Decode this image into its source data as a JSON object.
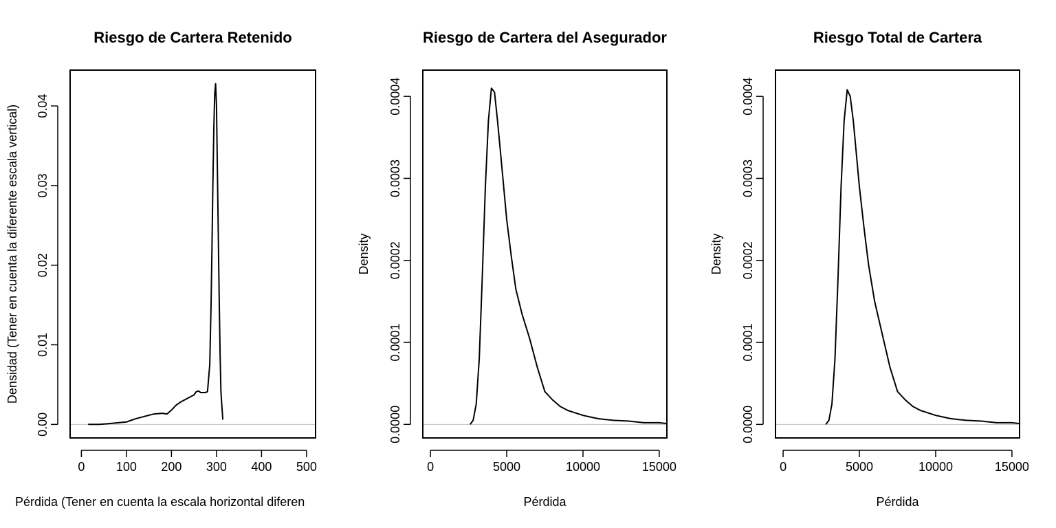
{
  "chart_data": [
    {
      "type": "line",
      "title": "Riesgo de Cartera Retenido",
      "xlabel": "Pérdida (Tener en cuenta la escala horizontal diferen",
      "ylabel": "Densidad (Tener en cuenta la diferente escala vertical)",
      "xlim": [
        -25,
        520
      ],
      "ylim": [
        -0.0017,
        0.0445
      ],
      "xticks": [
        0,
        100,
        200,
        300,
        400,
        500
      ],
      "xtick_labels": [
        "0",
        "100",
        "200",
        "300",
        "400",
        "500"
      ],
      "yticks": [
        0.0,
        0.01,
        0.02,
        0.03,
        0.04
      ],
      "ytick_labels": [
        "0.00",
        "0.01",
        "0.02",
        "0.03",
        "0.04"
      ],
      "grid": false,
      "baseline": 0,
      "series": [
        {
          "x": [
            15,
            40,
            60,
            80,
            100,
            110,
            120,
            140,
            160,
            180,
            190,
            200,
            210,
            220,
            230,
            240,
            250,
            255,
            260,
            265,
            270,
            275,
            280,
            285,
            288,
            290,
            292,
            294,
            296,
            298,
            300,
            302,
            304,
            306,
            308,
            310,
            314
          ],
          "y": [
            0.0,
            0.0,
            0.0001,
            0.0002,
            0.0003,
            0.0005,
            0.0007,
            0.001,
            0.0013,
            0.0014,
            0.0013,
            0.0018,
            0.0024,
            0.0028,
            0.0031,
            0.0034,
            0.0037,
            0.0041,
            0.0042,
            0.004,
            0.004,
            0.004,
            0.0041,
            0.0075,
            0.015,
            0.022,
            0.03,
            0.037,
            0.0415,
            0.0428,
            0.04,
            0.032,
            0.024,
            0.016,
            0.009,
            0.004,
            0.0006
          ]
        }
      ]
    },
    {
      "type": "line",
      "title": "Riesgo de Cartera del Asegurador",
      "xlabel": "Pérdida",
      "ylabel": "Density",
      "xlim": [
        -500,
        15500
      ],
      "ylim": [
        -1.65e-05,
        0.000432
      ],
      "xticks": [
        0,
        5000,
        10000,
        15000
      ],
      "xtick_labels": [
        "0",
        "5000",
        "10000",
        "15000"
      ],
      "yticks": [
        0.0,
        0.0001,
        0.0002,
        0.0003,
        0.0004
      ],
      "ytick_labels": [
        "0.0000",
        "0.0001",
        "0.0002",
        "0.0003",
        "0.0004"
      ],
      "grid": false,
      "baseline": 0,
      "series": [
        {
          "x": [
            2600,
            2800,
            3000,
            3200,
            3400,
            3600,
            3800,
            4000,
            4200,
            4400,
            4600,
            4800,
            5000,
            5300,
            5600,
            6000,
            6500,
            7000,
            7500,
            8000,
            8500,
            9000,
            9500,
            10000,
            10500,
            11000,
            11500,
            12000,
            13000,
            14000,
            15000,
            15500
          ],
          "y": [
            0.0,
            5e-06,
            2.5e-05,
            8e-05,
            0.00018,
            0.00029,
            0.00037,
            0.00041,
            0.000405,
            0.00037,
            0.00033,
            0.00029,
            0.00025,
            0.000205,
            0.000165,
            0.000135,
            0.000105,
            7e-05,
            4e-05,
            3e-05,
            2.2e-05,
            1.7e-05,
            1.4e-05,
            1.1e-05,
            9e-06,
            7e-06,
            6e-06,
            5e-06,
            4e-06,
            2e-06,
            2e-06,
            1e-06
          ]
        }
      ]
    },
    {
      "type": "line",
      "title": "Riesgo Total de Cartera",
      "xlabel": "Pérdida",
      "ylabel": "Density",
      "xlim": [
        -500,
        15500
      ],
      "ylim": [
        -1.65e-05,
        0.000432
      ],
      "xticks": [
        0,
        5000,
        10000,
        15000
      ],
      "xtick_labels": [
        "0",
        "5000",
        "10000",
        "15000"
      ],
      "yticks": [
        0.0,
        0.0001,
        0.0002,
        0.0003,
        0.0004
      ],
      "ytick_labels": [
        "0.0000",
        "0.0001",
        "0.0002",
        "0.0003",
        "0.0004"
      ],
      "grid": false,
      "baseline": 0,
      "series": [
        {
          "x": [
            2800,
            3000,
            3200,
            3400,
            3600,
            3800,
            4000,
            4200,
            4400,
            4600,
            4800,
            5000,
            5300,
            5600,
            6000,
            6500,
            7000,
            7500,
            8000,
            8500,
            9000,
            9500,
            10000,
            10500,
            11000,
            11500,
            12000,
            13000,
            14000,
            15000,
            15500
          ],
          "y": [
            0.0,
            5e-06,
            2.5e-05,
            8e-05,
            0.00018,
            0.00029,
            0.00037,
            0.000408,
            0.0004,
            0.00037,
            0.00033,
            0.00029,
            0.00024,
            0.000195,
            0.00015,
            0.00011,
            7e-05,
            4e-05,
            3e-05,
            2.2e-05,
            1.7e-05,
            1.4e-05,
            1.1e-05,
            9e-06,
            7e-06,
            6e-06,
            5e-06,
            4e-06,
            2e-06,
            2e-06,
            1e-06
          ]
        }
      ]
    }
  ]
}
